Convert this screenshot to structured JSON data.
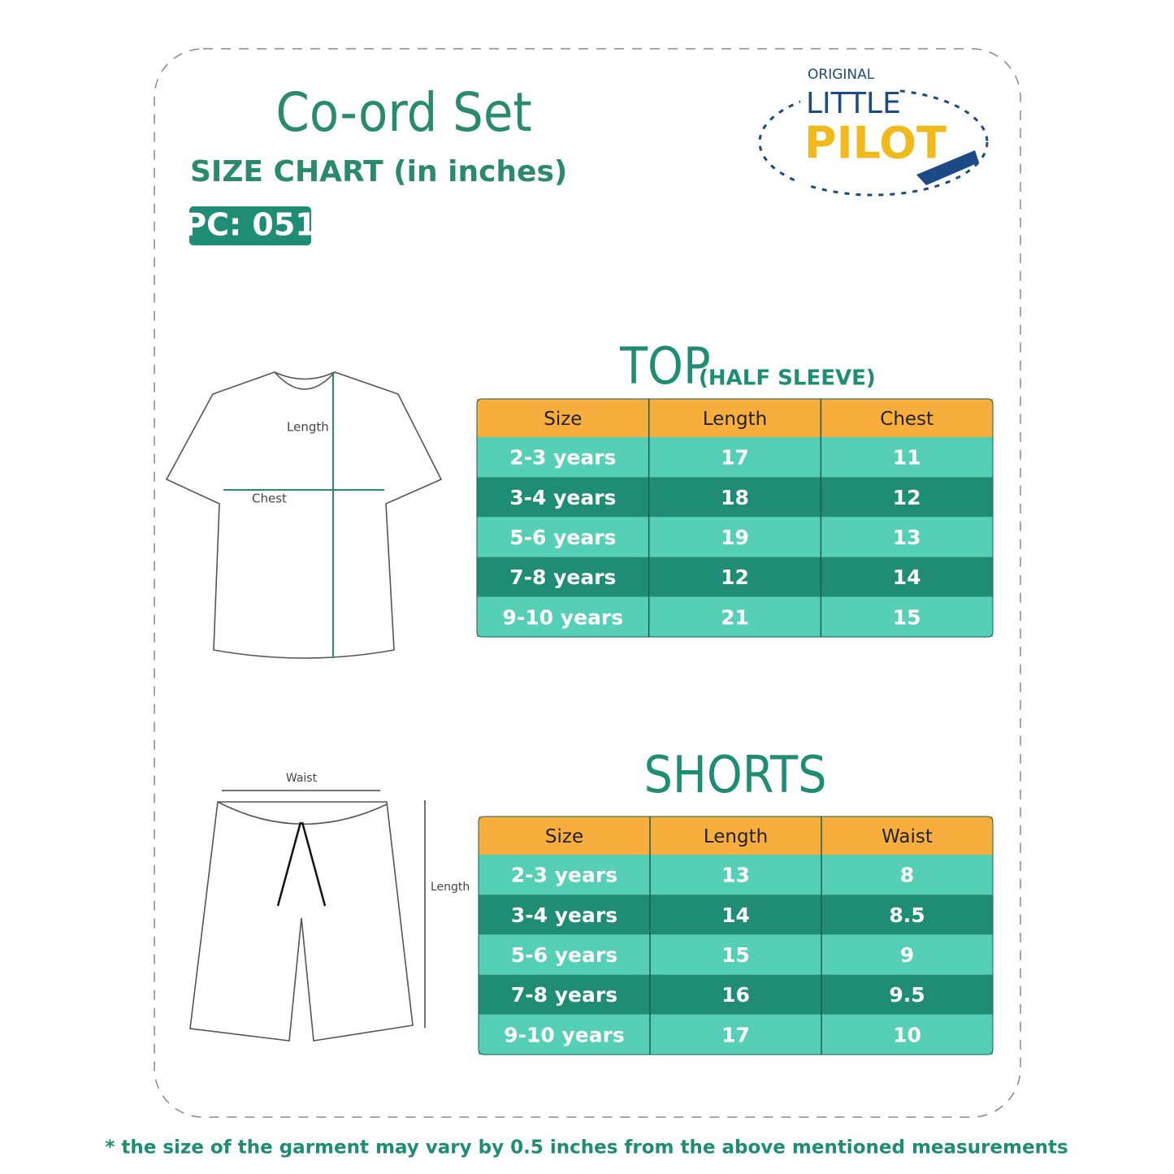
{
  "header": {
    "title": "Co-ord Set",
    "subtitle": "SIZE CHART (in inches)",
    "product_code": "PC: 051"
  },
  "logo": {
    "line1": "ORIGINAL",
    "line2": "LITTLE",
    "line3": "PILOT"
  },
  "top": {
    "title": "TOP",
    "subtitle": "(HALF SLEEVE)",
    "columns": [
      "Size",
      "Length",
      "Chest"
    ],
    "rows": [
      [
        "2-3 years",
        "17",
        "11"
      ],
      [
        "3-4 years",
        "18",
        "12"
      ],
      [
        "5-6 years",
        "19",
        "13"
      ],
      [
        "7-8 years",
        "12",
        "14"
      ],
      [
        "9-10 years",
        "21",
        "15"
      ]
    ],
    "diagram": {
      "length": "Length",
      "chest": "Chest"
    }
  },
  "shorts": {
    "title": "SHORTS",
    "columns": [
      "Size",
      "Length",
      "Waist"
    ],
    "rows": [
      [
        "2-3 years",
        "13",
        "8"
      ],
      [
        "3-4 years",
        "14",
        "8.5"
      ],
      [
        "5-6 years",
        "15",
        "9"
      ],
      [
        "7-8 years",
        "16",
        "9.5"
      ],
      [
        "9-10 years",
        "17",
        "10"
      ]
    ],
    "diagram": {
      "waist": "Waist",
      "length": "Length"
    }
  },
  "footnote": "* the size of the garment may vary by 0.5 inches from the above mentioned measurements"
}
